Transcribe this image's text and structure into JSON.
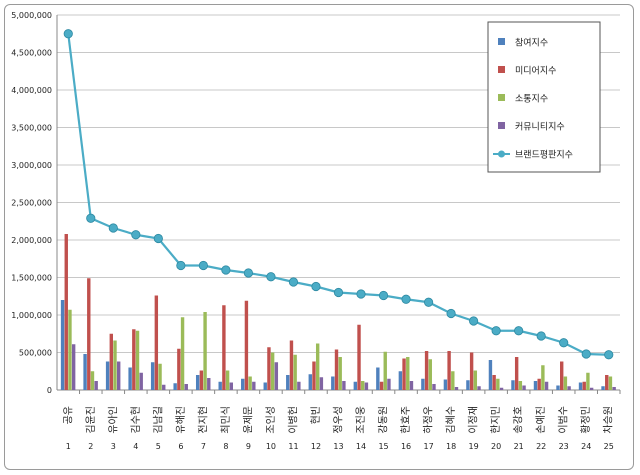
{
  "chart_data": {
    "type": "bar",
    "title": "",
    "xlabel": "",
    "ylabel": "",
    "ylim": [
      0,
      5000000
    ],
    "ytick_labels": [
      "0",
      "500,000",
      "1,000,000",
      "1,500,000",
      "2,000,000",
      "2,500,000",
      "3,000,000",
      "3,500,000",
      "4,000,000",
      "4,500,000",
      "5,000,000"
    ],
    "yticks": [
      0,
      500000,
      1000000,
      1500000,
      2000000,
      2500000,
      3000000,
      3500000,
      4000000,
      4500000,
      5000000
    ],
    "grid": true,
    "legend_position": "top-right",
    "categories": [
      "공유",
      "김윤진",
      "유아인",
      "김수현",
      "김남길",
      "유해진",
      "전지현",
      "최민식",
      "윤제문",
      "조인성",
      "이병헌",
      "현빈",
      "정우성",
      "조진웅",
      "강동원",
      "한효주",
      "하정우",
      "김혜수",
      "이정재",
      "한지민",
      "송강호",
      "손예진",
      "이범수",
      "황정민",
      "차승원"
    ],
    "index_labels": [
      "1",
      "2",
      "3",
      "4",
      "5",
      "6",
      "7",
      "8",
      "9",
      "10",
      "11",
      "12",
      "13",
      "14",
      "15",
      "16",
      "17",
      "18",
      "19",
      "20",
      "21",
      "22",
      "23",
      "24",
      "25"
    ],
    "series": [
      {
        "name": "참여지수",
        "kind": "bar",
        "color": "#4f81bd",
        "values": [
          1200000,
          480000,
          380000,
          300000,
          370000,
          90000,
          200000,
          110000,
          150000,
          100000,
          200000,
          210000,
          180000,
          110000,
          300000,
          250000,
          150000,
          140000,
          130000,
          400000,
          130000,
          120000,
          60000,
          100000,
          50000
        ]
      },
      {
        "name": "미디어지수",
        "kind": "bar",
        "color": "#c0504d",
        "values": [
          2080000,
          1490000,
          750000,
          810000,
          1260000,
          550000,
          260000,
          1130000,
          1190000,
          570000,
          660000,
          380000,
          540000,
          870000,
          110000,
          420000,
          520000,
          520000,
          500000,
          200000,
          440000,
          150000,
          380000,
          110000,
          200000
        ]
      },
      {
        "name": "소통지수",
        "kind": "bar",
        "color": "#9bbb59",
        "values": [
          1070000,
          250000,
          660000,
          790000,
          350000,
          970000,
          1040000,
          260000,
          180000,
          500000,
          470000,
          620000,
          440000,
          120000,
          510000,
          440000,
          410000,
          250000,
          260000,
          150000,
          120000,
          330000,
          180000,
          230000,
          180000
        ]
      },
      {
        "name": "커뮤니티지수",
        "kind": "bar",
        "color": "#8064a2",
        "values": [
          610000,
          120000,
          380000,
          230000,
          70000,
          80000,
          160000,
          100000,
          110000,
          370000,
          110000,
          170000,
          120000,
          100000,
          150000,
          120000,
          80000,
          40000,
          50000,
          30000,
          60000,
          110000,
          50000,
          30000,
          40000
        ]
      },
      {
        "name": "브랜드평판지수",
        "kind": "line",
        "color": "#4bacc6",
        "values": [
          4750000,
          2290000,
          2160000,
          2070000,
          2020000,
          1660000,
          1660000,
          1600000,
          1560000,
          1510000,
          1440000,
          1380000,
          1300000,
          1280000,
          1260000,
          1210000,
          1170000,
          1020000,
          920000,
          790000,
          790000,
          720000,
          630000,
          480000,
          470000
        ]
      }
    ]
  }
}
